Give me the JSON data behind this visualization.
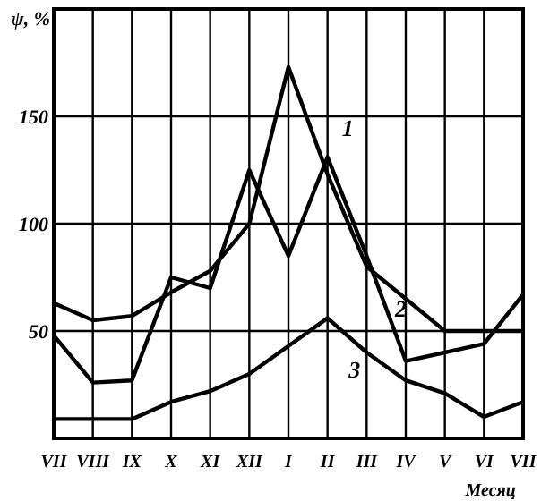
{
  "chart_data": {
    "type": "line",
    "ylabel": "ψ, %",
    "xlabel": "Месяц",
    "categories": [
      "VII",
      "VIII",
      "IX",
      "X",
      "XI",
      "XII",
      "I",
      "II",
      "III",
      "IV",
      "V",
      "VI",
      "VII"
    ],
    "series": [
      {
        "name": "1",
        "color": "#000000",
        "values": [
          48,
          26,
          27,
          75,
          70,
          125,
          85,
          131,
          85,
          36,
          40,
          44,
          67
        ]
      },
      {
        "name": "2",
        "color": "#000000",
        "values": [
          63,
          55,
          57,
          68,
          78,
          100,
          173,
          123,
          80,
          65,
          50,
          50,
          50
        ]
      },
      {
        "name": "3",
        "color": "#000000",
        "values": [
          9,
          9,
          9,
          17,
          22,
          30,
          43,
          56,
          40,
          27,
          21,
          10,
          17
        ]
      }
    ],
    "ylim": [
      0,
      200
    ],
    "yticks": [
      50,
      100,
      150
    ],
    "grid": true
  }
}
